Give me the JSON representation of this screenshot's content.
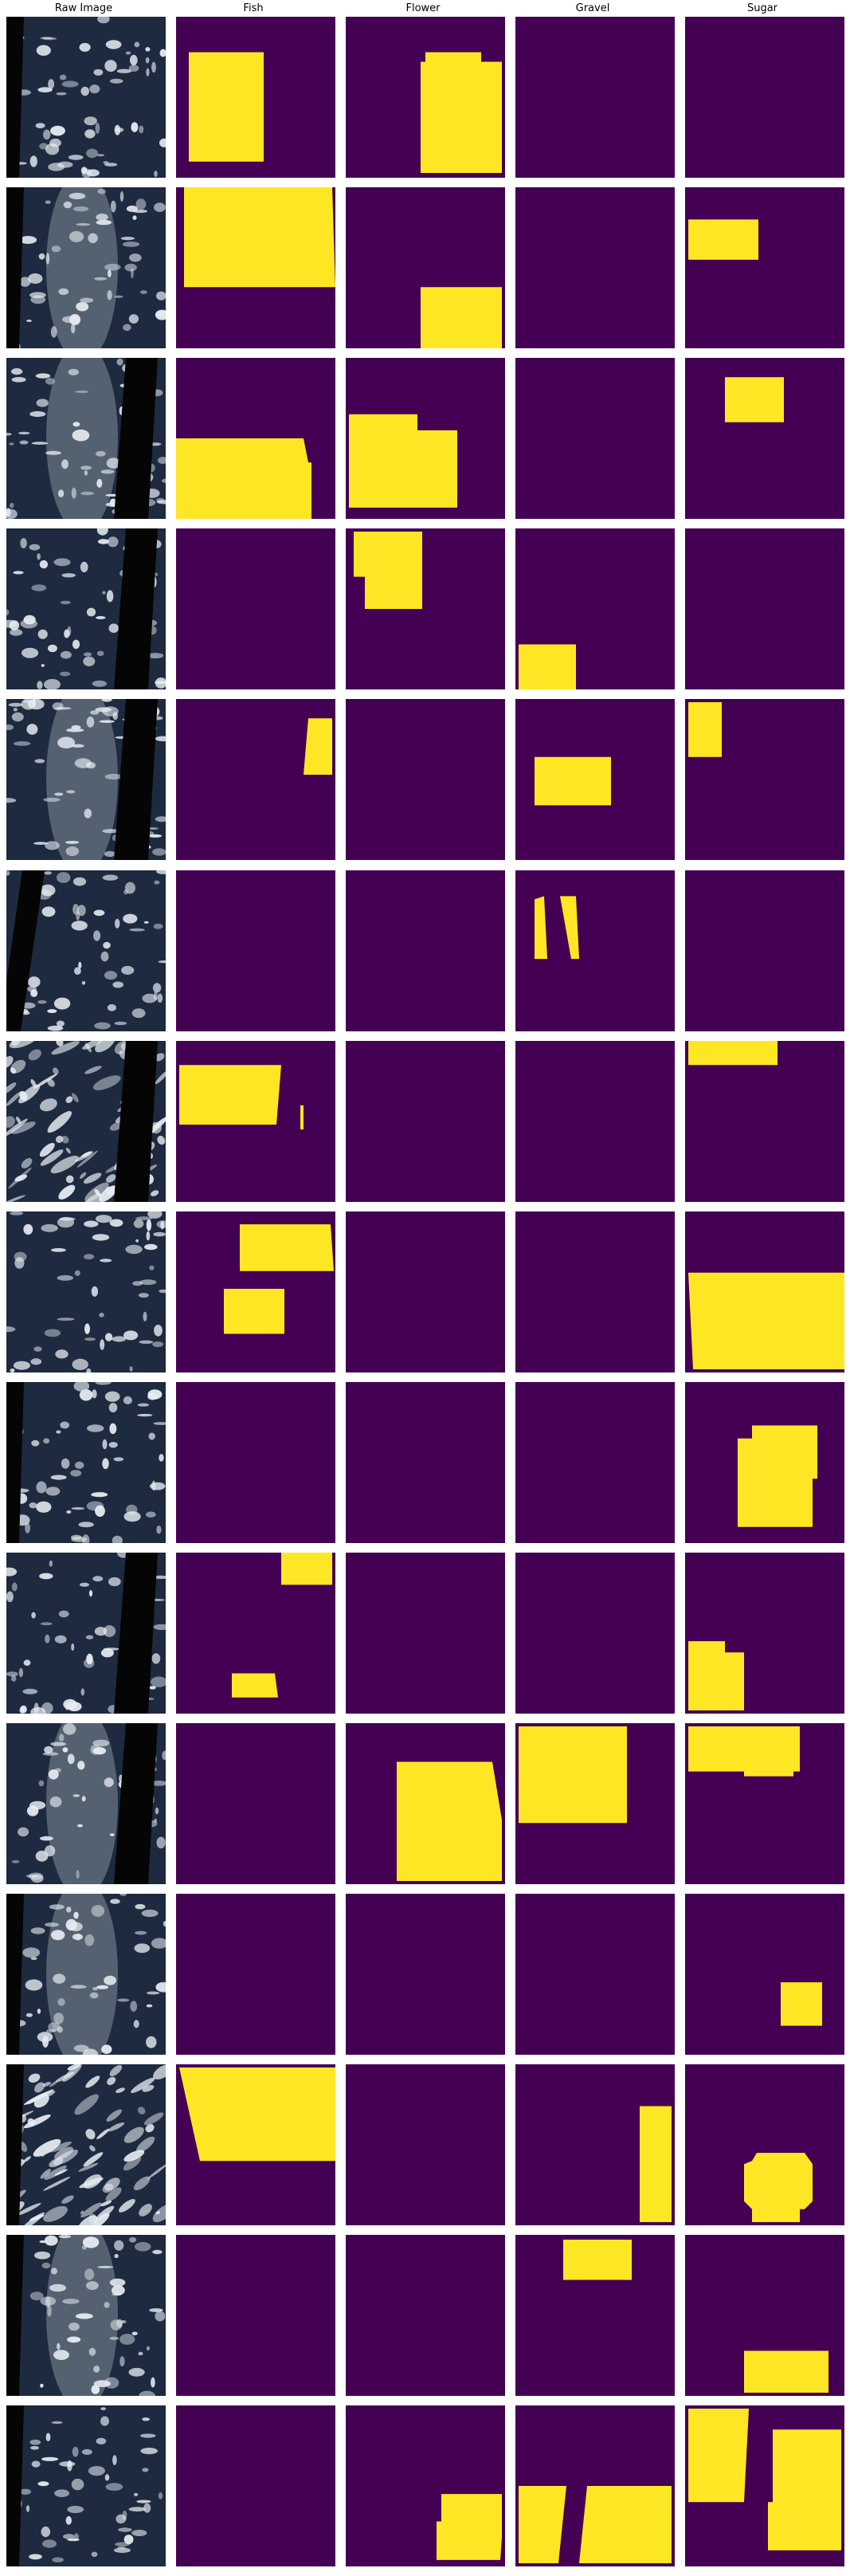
{
  "headers": [
    "Raw Image",
    "Fish",
    "Flower",
    "Gravel",
    "Sugar"
  ],
  "colors": {
    "mask_background": "#440154",
    "mask_foreground": "#fde725",
    "satellite_dark": "#1d2a3f",
    "cloud_white": "#e8edf2",
    "gap_black": "#050505"
  },
  "rows": [
    {
      "raw": {
        "band": "left"
      },
      "masks": {
        "fish": [
          [
            [
              0.08,
              0.22
            ],
            [
              0.55,
              0.22
            ],
            [
              0.55,
              0.9
            ],
            [
              0.08,
              0.9
            ]
          ]
        ],
        "flower": [
          [
            [
              0.5,
              0.22
            ],
            [
              0.85,
              0.22
            ],
            [
              0.85,
              0.28
            ],
            [
              0.98,
              0.28
            ],
            [
              0.98,
              0.97
            ],
            [
              0.47,
              0.97
            ],
            [
              0.47,
              0.28
            ],
            [
              0.5,
              0.28
            ]
          ]
        ],
        "gravel": [],
        "sugar": []
      }
    },
    {
      "raw": {
        "band": "left",
        "glint": true
      },
      "masks": {
        "fish": [
          [
            [
              0.05,
              0.0
            ],
            [
              0.98,
              0.0
            ],
            [
              1.0,
              0.62
            ],
            [
              0.05,
              0.62
            ]
          ]
        ],
        "flower": [
          [
            [
              0.47,
              0.62
            ],
            [
              0.98,
              0.62
            ],
            [
              0.98,
              1.0
            ],
            [
              0.47,
              1.0
            ]
          ]
        ],
        "gravel": [],
        "sugar": [
          [
            [
              0.02,
              0.2
            ],
            [
              0.46,
              0.2
            ],
            [
              0.46,
              0.45
            ],
            [
              0.02,
              0.45
            ]
          ]
        ]
      }
    },
    {
      "raw": {
        "band": "right",
        "glint": true
      },
      "masks": {
        "fish": [
          [
            [
              0.0,
              0.5
            ],
            [
              0.8,
              0.5
            ],
            [
              0.83,
              0.65
            ],
            [
              0.85,
              0.65
            ],
            [
              0.85,
              1.0
            ],
            [
              0.0,
              1.0
            ]
          ]
        ],
        "flower": [
          [
            [
              0.02,
              0.35
            ],
            [
              0.45,
              0.35
            ],
            [
              0.45,
              0.45
            ],
            [
              0.7,
              0.45
            ],
            [
              0.7,
              0.93
            ],
            [
              0.02,
              0.93
            ]
          ]
        ],
        "gravel": [],
        "sugar": [
          [
            [
              0.25,
              0.12
            ],
            [
              0.62,
              0.12
            ],
            [
              0.62,
              0.4
            ],
            [
              0.25,
              0.4
            ]
          ]
        ]
      }
    },
    {
      "raw": {
        "band": "right"
      },
      "masks": {
        "fish": [],
        "flower": [
          [
            [
              0.05,
              0.02
            ],
            [
              0.48,
              0.02
            ],
            [
              0.48,
              0.5
            ],
            [
              0.12,
              0.5
            ],
            [
              0.12,
              0.3
            ],
            [
              0.05,
              0.3
            ]
          ]
        ],
        "gravel": [
          [
            [
              0.02,
              0.72
            ],
            [
              0.38,
              0.72
            ],
            [
              0.38,
              1.0
            ],
            [
              0.02,
              1.0
            ]
          ]
        ],
        "sugar": []
      }
    },
    {
      "raw": {
        "band": "right",
        "glint": true
      },
      "masks": {
        "fish": [
          [
            [
              0.83,
              0.12
            ],
            [
              0.98,
              0.12
            ],
            [
              0.98,
              0.47
            ],
            [
              0.8,
              0.47
            ]
          ]
        ],
        "flower": [],
        "gravel": [
          [
            [
              0.12,
              0.36
            ],
            [
              0.6,
              0.36
            ],
            [
              0.6,
              0.66
            ],
            [
              0.12,
              0.66
            ]
          ]
        ],
        "sugar": [
          [
            [
              0.02,
              0.02
            ],
            [
              0.23,
              0.02
            ],
            [
              0.23,
              0.36
            ],
            [
              0.02,
              0.36
            ]
          ]
        ]
      }
    },
    {
      "raw": {
        "band": "left-diagonal"
      },
      "masks": {
        "fish": [],
        "flower": [],
        "gravel": [
          [
            [
              0.12,
              0.18
            ],
            [
              0.18,
              0.16
            ],
            [
              0.2,
              0.55
            ],
            [
              0.12,
              0.55
            ]
          ],
          [
            [
              0.28,
              0.16
            ],
            [
              0.38,
              0.16
            ],
            [
              0.4,
              0.55
            ],
            [
              0.35,
              0.55
            ]
          ]
        ],
        "sugar": []
      }
    },
    {
      "raw": {
        "band": "right",
        "swirl": true
      },
      "masks": {
        "fish": [
          [
            [
              0.02,
              0.15
            ],
            [
              0.66,
              0.15
            ],
            [
              0.63,
              0.52
            ],
            [
              0.02,
              0.52
            ]
          ],
          [
            [
              0.78,
              0.4
            ],
            [
              0.8,
              0.4
            ],
            [
              0.8,
              0.55
            ],
            [
              0.78,
              0.55
            ]
          ]
        ],
        "flower": [],
        "gravel": [],
        "sugar": [
          [
            [
              0.02,
              0.0
            ],
            [
              0.58,
              0.0
            ],
            [
              0.58,
              0.15
            ],
            [
              0.02,
              0.15
            ]
          ]
        ]
      }
    },
    {
      "raw": {
        "band": "none"
      },
      "masks": {
        "fish": [
          [
            [
              0.4,
              0.08
            ],
            [
              0.97,
              0.08
            ],
            [
              0.99,
              0.37
            ],
            [
              0.4,
              0.37
            ]
          ],
          [
            [
              0.3,
              0.48
            ],
            [
              0.68,
              0.48
            ],
            [
              0.68,
              0.76
            ],
            [
              0.3,
              0.76
            ]
          ]
        ],
        "flower": [],
        "gravel": [],
        "sugar": [
          [
            [
              0.02,
              0.38
            ],
            [
              1.0,
              0.38
            ],
            [
              1.0,
              0.98
            ],
            [
              0.05,
              0.98
            ]
          ]
        ]
      }
    },
    {
      "raw": {
        "band": "left"
      },
      "masks": {
        "fish": [],
        "flower": [],
        "gravel": [],
        "sugar": [
          [
            [
              0.42,
              0.27
            ],
            [
              0.83,
              0.27
            ],
            [
              0.83,
              0.6
            ],
            [
              0.8,
              0.6
            ],
            [
              0.8,
              0.9
            ],
            [
              0.33,
              0.9
            ],
            [
              0.33,
              0.35
            ],
            [
              0.42,
              0.35
            ]
          ]
        ]
      }
    },
    {
      "raw": {
        "band": "right"
      },
      "masks": {
        "fish": [
          [
            [
              0.66,
              0.0
            ],
            [
              0.98,
              0.0
            ],
            [
              0.98,
              0.2
            ],
            [
              0.66,
              0.2
            ]
          ],
          [
            [
              0.35,
              0.75
            ],
            [
              0.62,
              0.75
            ],
            [
              0.64,
              0.9
            ],
            [
              0.35,
              0.9
            ]
          ]
        ],
        "flower": [],
        "gravel": [],
        "sugar": [
          [
            [
              0.02,
              0.55
            ],
            [
              0.25,
              0.55
            ],
            [
              0.25,
              0.62
            ],
            [
              0.37,
              0.62
            ],
            [
              0.37,
              0.98
            ],
            [
              0.02,
              0.98
            ]
          ]
        ]
      }
    },
    {
      "raw": {
        "band": "right",
        "glint": true
      },
      "masks": {
        "fish": [],
        "flower": [
          [
            [
              0.32,
              0.24
            ],
            [
              0.92,
              0.24
            ],
            [
              0.98,
              0.6
            ],
            [
              0.98,
              0.98
            ],
            [
              0.32,
              0.98
            ]
          ]
        ],
        "gravel": [
          [
            [
              0.02,
              0.02
            ],
            [
              0.7,
              0.02
            ],
            [
              0.7,
              0.62
            ],
            [
              0.02,
              0.62
            ]
          ]
        ],
        "sugar": [
          [
            [
              0.02,
              0.02
            ],
            [
              0.72,
              0.02
            ],
            [
              0.72,
              0.3
            ],
            [
              0.68,
              0.3
            ],
            [
              0.68,
              0.33
            ],
            [
              0.37,
              0.33
            ],
            [
              0.37,
              0.3
            ],
            [
              0.02,
              0.3
            ]
          ]
        ]
      }
    },
    {
      "raw": {
        "band": "left",
        "glint": true
      },
      "masks": {
        "fish": [],
        "flower": [],
        "gravel": [],
        "sugar": [
          [
            [
              0.6,
              0.55
            ],
            [
              0.86,
              0.55
            ],
            [
              0.86,
              0.82
            ],
            [
              0.6,
              0.82
            ]
          ]
        ]
      }
    },
    {
      "raw": {
        "band": "left",
        "swirl": true
      },
      "masks": {
        "fish": [
          [
            [
              0.02,
              0.02
            ],
            [
              1.0,
              0.02
            ],
            [
              1.0,
              0.6
            ],
            [
              0.15,
              0.6
            ]
          ]
        ],
        "flower": [],
        "gravel": [
          [
            [
              0.78,
              0.26
            ],
            [
              0.98,
              0.26
            ],
            [
              0.98,
              0.98
            ],
            [
              0.78,
              0.98
            ]
          ]
        ],
        "sugar": [
          [
            [
              0.45,
              0.55
            ],
            [
              0.75,
              0.55
            ],
            [
              0.8,
              0.62
            ],
            [
              0.8,
              0.85
            ],
            [
              0.75,
              0.9
            ],
            [
              0.72,
              0.9
            ],
            [
              0.72,
              0.98
            ],
            [
              0.42,
              0.98
            ],
            [
              0.42,
              0.9
            ],
            [
              0.37,
              0.85
            ],
            [
              0.37,
              0.62
            ],
            [
              0.42,
              0.6
            ]
          ]
        ]
      }
    },
    {
      "raw": {
        "band": "left",
        "glint": true
      },
      "masks": {
        "fish": [],
        "flower": [],
        "gravel": [
          [
            [
              0.3,
              0.03
            ],
            [
              0.73,
              0.03
            ],
            [
              0.73,
              0.28
            ],
            [
              0.3,
              0.28
            ]
          ]
        ],
        "sugar": [
          [
            [
              0.37,
              0.72
            ],
            [
              0.9,
              0.72
            ],
            [
              0.9,
              0.98
            ],
            [
              0.37,
              0.98
            ]
          ]
        ]
      }
    },
    {
      "raw": {
        "band": "left"
      },
      "masks": {
        "fish": [],
        "flower": [
          [
            [
              0.6,
              0.55
            ],
            [
              0.98,
              0.55
            ],
            [
              0.98,
              0.82
            ],
            [
              0.97,
              0.96
            ],
            [
              0.57,
              0.96
            ],
            [
              0.57,
              0.72
            ],
            [
              0.6,
              0.72
            ]
          ]
        ],
        "gravel": [
          [
            [
              0.02,
              0.5
            ],
            [
              0.32,
              0.5
            ],
            [
              0.27,
              0.98
            ],
            [
              0.02,
              0.98
            ]
          ],
          [
            [
              0.45,
              0.5
            ],
            [
              0.98,
              0.5
            ],
            [
              0.98,
              0.98
            ],
            [
              0.4,
              0.98
            ]
          ]
        ],
        "sugar": [
          [
            [
              0.02,
              0.02
            ],
            [
              0.4,
              0.02
            ],
            [
              0.37,
              0.6
            ],
            [
              0.02,
              0.6
            ]
          ],
          [
            [
              0.55,
              0.15
            ],
            [
              0.98,
              0.15
            ],
            [
              0.98,
              0.9
            ],
            [
              0.52,
              0.9
            ],
            [
              0.52,
              0.6
            ],
            [
              0.55,
              0.6
            ]
          ]
        ]
      }
    }
  ]
}
